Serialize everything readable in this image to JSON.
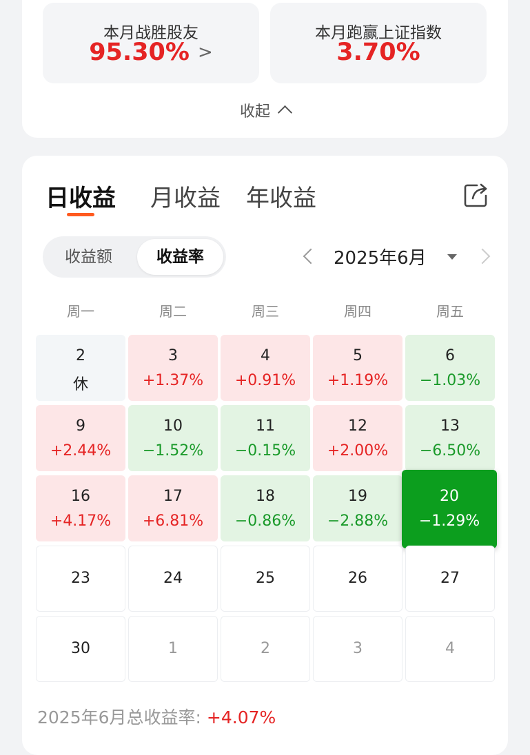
{
  "summary": {
    "beat_users_label": "本月战胜股友",
    "beat_users_value": "95.30%",
    "beat_index_label": "本月跑赢上证指数",
    "beat_index_value": "3.70%",
    "collapse_label": "收起"
  },
  "tabs": [
    {
      "label": "日收益",
      "active": true
    },
    {
      "label": "月收益",
      "active": false
    },
    {
      "label": "年收益",
      "active": false
    }
  ],
  "toggle": {
    "amount_label": "收益额",
    "rate_label": "收益率",
    "active": "rate"
  },
  "month_nav": {
    "label": "2025年6月"
  },
  "weekdays": [
    "周一",
    "周二",
    "周三",
    "周四",
    "周五"
  ],
  "calendar": [
    [
      {
        "day": "2",
        "value": "休",
        "type": "rest"
      },
      {
        "day": "3",
        "value": "+1.37%",
        "type": "up"
      },
      {
        "day": "4",
        "value": "+0.91%",
        "type": "up"
      },
      {
        "day": "5",
        "value": "+1.19%",
        "type": "up"
      },
      {
        "day": "6",
        "value": "−1.03%",
        "type": "down"
      }
    ],
    [
      {
        "day": "9",
        "value": "+2.44%",
        "type": "up"
      },
      {
        "day": "10",
        "value": "−1.52%",
        "type": "down"
      },
      {
        "day": "11",
        "value": "−0.15%",
        "type": "down"
      },
      {
        "day": "12",
        "value": "+2.00%",
        "type": "up"
      },
      {
        "day": "13",
        "value": "−6.50%",
        "type": "down"
      }
    ],
    [
      {
        "day": "16",
        "value": "+4.17%",
        "type": "up"
      },
      {
        "day": "17",
        "value": "+6.81%",
        "type": "up"
      },
      {
        "day": "18",
        "value": "−0.86%",
        "type": "down"
      },
      {
        "day": "19",
        "value": "−2.88%",
        "type": "down"
      },
      {
        "day": "20",
        "value": "−1.29%",
        "type": "selected"
      }
    ],
    [
      {
        "day": "23",
        "value": "",
        "type": "future"
      },
      {
        "day": "24",
        "value": "",
        "type": "future"
      },
      {
        "day": "25",
        "value": "",
        "type": "future"
      },
      {
        "day": "26",
        "value": "",
        "type": "future"
      },
      {
        "day": "27",
        "value": "",
        "type": "future"
      }
    ],
    [
      {
        "day": "30",
        "value": "",
        "type": "future"
      },
      {
        "day": "1",
        "value": "",
        "type": "next"
      },
      {
        "day": "2",
        "value": "",
        "type": "next"
      },
      {
        "day": "3",
        "value": "",
        "type": "next"
      },
      {
        "day": "4",
        "value": "",
        "type": "next"
      }
    ]
  ],
  "total": {
    "label": "2025年6月总收益率:",
    "value": "+4.07%"
  },
  "colors": {
    "up": "#e52424",
    "down": "#1a9a2a",
    "selected": "#0c9e1e",
    "accent": "#ff5a1f"
  }
}
